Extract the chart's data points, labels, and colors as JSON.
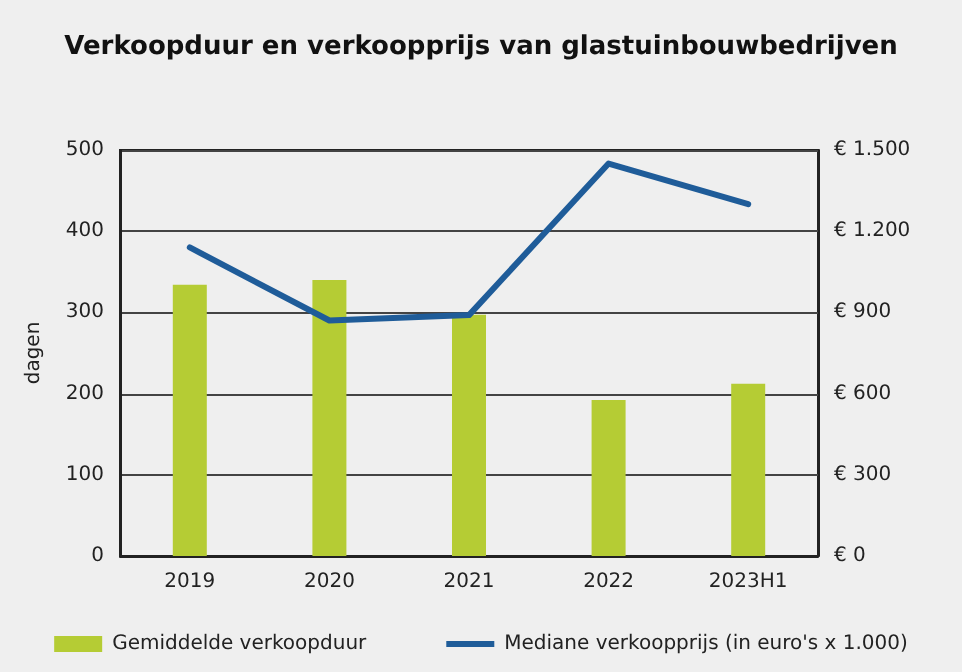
{
  "chart_data": {
    "type": "bar",
    "title": "Verkoopduur en verkoopprijs van glastuinbouwbedrijven",
    "categories": [
      "2019",
      "2020",
      "2021",
      "2022",
      "2023H1"
    ],
    "series": [
      {
        "name": "Gemiddelde verkoopduur",
        "color": "#b5cc34",
        "values": [
          334,
          340,
          297,
          192,
          212
        ]
      },
      {
        "name": "Mediane verkoopprijs (in euro's x 1.000)",
        "type": "line",
        "axis": "y2",
        "color": "#1f5c99",
        "values": [
          1140,
          870,
          890,
          1450,
          1300
        ]
      }
    ],
    "ylabel": "dagen",
    "ylim": [
      0,
      500
    ],
    "yticks": [
      0,
      100,
      200,
      300,
      400,
      500
    ],
    "y2lim": [
      0,
      1500
    ],
    "y2ticks": [
      {
        "value": 0,
        "label": "€ 0"
      },
      {
        "value": 300,
        "label": "€ 300"
      },
      {
        "value": 600,
        "label": "€ 600"
      },
      {
        "value": 900,
        "label": "€ 900"
      },
      {
        "value": 1200,
        "label": "€ 1.200"
      },
      {
        "value": 1500,
        "label": "€ 1.500"
      }
    ],
    "grid": "y",
    "legend": "bottom",
    "marker": "none"
  }
}
